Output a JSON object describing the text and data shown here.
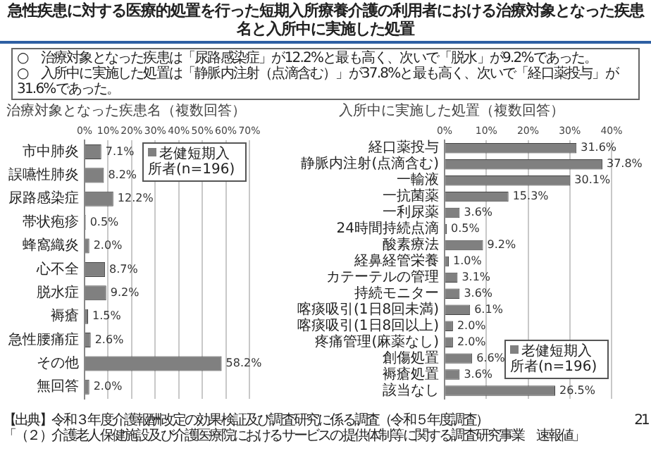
{
  "chart_data": [
    {
      "type": "bar",
      "orientation": "horizontal",
      "title": "急性疾患に対する医療的処置を行った短期入所療養介護の利用者における治療対象となった疾患名と入所中に実施した処置",
      "subtitle": "治療対象となった疾患名（複数回答）",
      "annotations": [
        "○　治療対象となった疾患は「尿路感染症」が12.2%と最も高く、次いで「脱水」が9.2%であった。",
        "○　入所中に実施した処置は「静脈内注射（点滴含む）」が37.8%と最も高く、次いで「経口薬投与」が31.6%であった。"
      ],
      "categories": [
        "市中肺炎",
        "誤嚥性肺炎",
        "尿路感染症",
        "帯状疱疹",
        "蜂窩織炎",
        "心不全",
        "脱水症",
        "褥瘡",
        "急性腰痛症",
        "その他",
        "無回答"
      ],
      "series": [
        {
          "name": "老健短期入所者(n=196)",
          "color": "#808080",
          "values": [
            7.1,
            8.2,
            12.2,
            0.5,
            2.0,
            8.7,
            9.2,
            1.5,
            2.6,
            58.2,
            2.0
          ],
          "value_labels": [
            "7.1%",
            "8.2%",
            "12.2%",
            "0.5%",
            "2.0%",
            "8.7%",
            "9.2%",
            "1.5%",
            "2.6%",
            "58.2%",
            "2.0%"
          ]
        }
      ],
      "xlim": [
        0,
        70
      ],
      "xticks": [
        {
          "value": 0,
          "label": "0%"
        },
        {
          "value": 10,
          "label": "10%"
        },
        {
          "value": 20,
          "label": "20%"
        },
        {
          "value": 30,
          "label": "30%"
        },
        {
          "value": 40,
          "label": "40%"
        },
        {
          "value": 50,
          "label": "50%"
        },
        {
          "value": 60,
          "label": "60%"
        },
        {
          "value": 70,
          "label": "70%"
        }
      ],
      "grid": "x",
      "legend": "top right"
    },
    {
      "type": "bar",
      "orientation": "horizontal",
      "title": "入所中に実施した処置（複数回答）",
      "annotations": [
        "【出典】令和３年度介護報酬改定の効果検証及び調査研究に係る調査（令和５年度調査）",
        "「（２）介護老人保健施設及び介護医療院におけるサービスの提供体制等に関する調査研究事業　速報値」",
        "21"
      ],
      "categories": [
        "経口薬投与",
        "静脈内注射(点滴含む)",
        "一輸液",
        "一抗菌薬",
        "一利尿薬",
        "24時間持続点滴",
        "酸素療法",
        "経鼻経管栄養",
        "カテーテルの管理",
        "持続モニター",
        "喀痰吸引(1日8回未満)",
        "喀痰吸引(1日8回以上)",
        "疼痛管理(麻薬なし)",
        "創傷処置",
        "褥瘡処置",
        "該当なし"
      ],
      "series": [
        {
          "name": "老健短期入所者(n=196)",
          "color": "#808080",
          "values": [
            31.6,
            37.8,
            30.1,
            15.3,
            3.6,
            0.5,
            9.2,
            1.0,
            3.1,
            3.6,
            6.1,
            2.0,
            2.0,
            6.6,
            3.6,
            26.5
          ],
          "value_labels": [
            "31.6%",
            "37.8%",
            "30.1%",
            "15.3%",
            "3.6%",
            "0.5%",
            "9.2%",
            "1.0%",
            "3.1%",
            "3.6%",
            "6.1%",
            "2.0%",
            "2.0%",
            "6.6%",
            "3.6%",
            "26.5%"
          ]
        }
      ],
      "xlim": [
        0,
        40
      ],
      "xticks": [
        {
          "value": 0,
          "label": "0%"
        },
        {
          "value": 10,
          "label": "10%"
        },
        {
          "value": 20,
          "label": "20%"
        },
        {
          "value": 30,
          "label": "30%"
        },
        {
          "value": 40,
          "label": "40%"
        }
      ],
      "grid": "x",
      "legend": "bottom right"
    }
  ]
}
